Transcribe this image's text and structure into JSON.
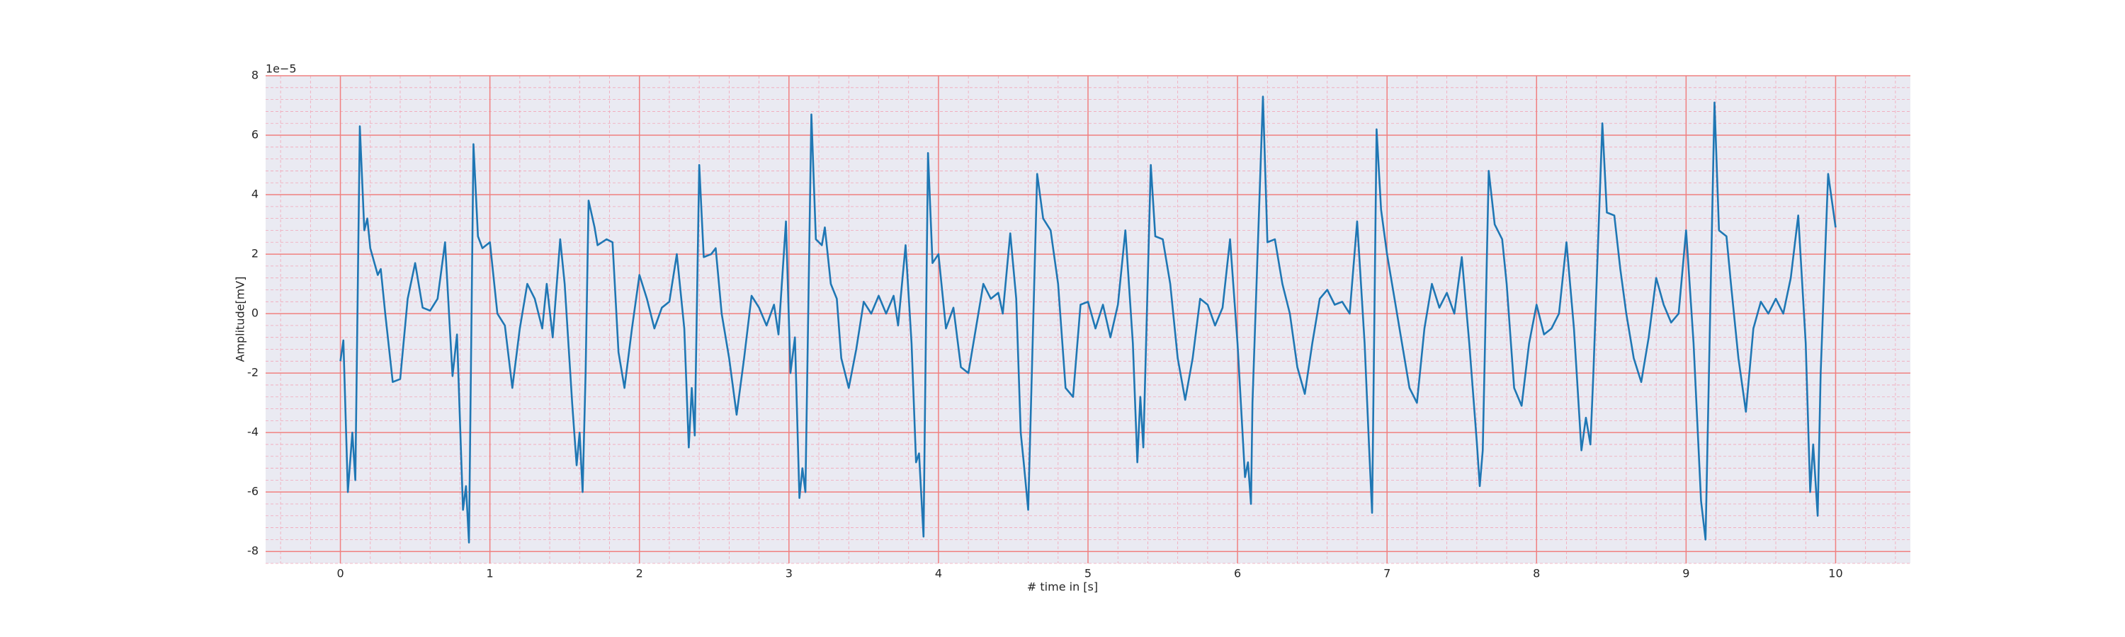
{
  "chart_data": {
    "type": "line",
    "xlabel": "# time in [s]",
    "ylabel": "Amplitude[mV]",
    "offset_text": "1e−5",
    "color": "#1f77b4",
    "grid": true,
    "minor_grid": true,
    "xlim": [
      -0.5,
      10.5
    ],
    "xticks": [
      0,
      1,
      2,
      3,
      4,
      5,
      6,
      7,
      8,
      9,
      10
    ],
    "ylim": [
      -8.4,
      8
    ],
    "yticks": [
      -8,
      -6,
      -4,
      -2,
      0,
      2,
      4,
      6,
      8
    ],
    "x": [
      0,
      0.02,
      0.05,
      0.08,
      0.1,
      0.13,
      0.16,
      0.18,
      0.2,
      0.25,
      0.27,
      0.3,
      0.35,
      0.4,
      0.45,
      0.5,
      0.55,
      0.6,
      0.65,
      0.7,
      0.75,
      0.78,
      0.82,
      0.84,
      0.86,
      0.89,
      0.92,
      0.95,
      1.0,
      1.05,
      1.1,
      1.15,
      1.2,
      1.25,
      1.3,
      1.35,
      1.38,
      1.42,
      1.47,
      1.5,
      1.55,
      1.58,
      1.6,
      1.62,
      1.64,
      1.66,
      1.7,
      1.72,
      1.78,
      1.82,
      1.86,
      1.9,
      1.95,
      2.0,
      2.05,
      2.1,
      2.15,
      2.2,
      2.25,
      2.3,
      2.33,
      2.35,
      2.37,
      2.4,
      2.43,
      2.48,
      2.51,
      2.55,
      2.6,
      2.65,
      2.7,
      2.75,
      2.8,
      2.85,
      2.9,
      2.93,
      2.98,
      3.01,
      3.04,
      3.07,
      3.09,
      3.11,
      3.15,
      3.18,
      3.22,
      3.24,
      3.28,
      3.32,
      3.35,
      3.4,
      3.45,
      3.5,
      3.55,
      3.6,
      3.65,
      3.7,
      3.73,
      3.78,
      3.82,
      3.85,
      3.87,
      3.9,
      3.93,
      3.96,
      4.0,
      4.05,
      4.1,
      4.15,
      4.2,
      4.25,
      4.3,
      4.35,
      4.4,
      4.43,
      4.48,
      4.52,
      4.55,
      4.57,
      4.6,
      4.66,
      4.7,
      4.75,
      4.8,
      4.85,
      4.9,
      4.95,
      5.0,
      5.05,
      5.1,
      5.15,
      5.2,
      5.25,
      5.3,
      5.33,
      5.35,
      5.37,
      5.42,
      5.45,
      5.5,
      5.55,
      5.6,
      5.65,
      5.7,
      5.75,
      5.8,
      5.85,
      5.9,
      5.95,
      6.0,
      6.05,
      6.07,
      6.09,
      6.1,
      6.17,
      6.2,
      6.25,
      6.3,
      6.35,
      6.4,
      6.45,
      6.5,
      6.55,
      6.6,
      6.65,
      6.7,
      6.75,
      6.8,
      6.85,
      6.88,
      6.9,
      6.93,
      6.96,
      7.0,
      7.05,
      7.1,
      7.15,
      7.2,
      7.25,
      7.3,
      7.35,
      7.4,
      7.45,
      7.5,
      7.55,
      7.6,
      7.62,
      7.64,
      7.68,
      7.72,
      7.77,
      7.8,
      7.85,
      7.9,
      7.95,
      8.0,
      8.05,
      8.1,
      8.15,
      8.2,
      8.25,
      8.3,
      8.33,
      8.36,
      8.38,
      8.44,
      8.47,
      8.52,
      8.56,
      8.6,
      8.65,
      8.7,
      8.75,
      8.8,
      8.85,
      8.9,
      8.95,
      9.0,
      9.05,
      9.1,
      9.13,
      9.19,
      9.22,
      9.27,
      9.3,
      9.35,
      9.4,
      9.45,
      9.5,
      9.55,
      9.6,
      9.65,
      9.7,
      9.75,
      9.8,
      9.83,
      9.85,
      9.88,
      9.9,
      9.95,
      10.0
    ],
    "values": [
      -1.6,
      -0.9,
      -6,
      -4,
      -5.6,
      6.3,
      2.8,
      3.2,
      2.2,
      1.3,
      1.5,
      0,
      -2.3,
      -2.2,
      0.5,
      1.7,
      0.2,
      0.1,
      0.5,
      2.4,
      -2.1,
      -0.7,
      -6.6,
      -5.8,
      -7.7,
      5.7,
      2.6,
      2.2,
      2.4,
      0,
      -0.4,
      -2.5,
      -0.5,
      1,
      0.5,
      -0.5,
      1,
      -0.8,
      2.5,
      1,
      -3,
      -5.1,
      -4,
      -6,
      -2,
      3.8,
      2.9,
      2.3,
      2.5,
      2.4,
      -1.3,
      -2.5,
      -0.5,
      1.3,
      0.5,
      -0.5,
      0.2,
      0.4,
      2,
      -0.5,
      -4.5,
      -2.5,
      -4.1,
      5,
      1.9,
      2,
      2.2,
      0,
      -1.5,
      -3.4,
      -1.5,
      0.6,
      0.2,
      -0.4,
      0.3,
      -0.7,
      3.1,
      -2,
      -0.8,
      -6.2,
      -5.2,
      -6,
      6.7,
      2.5,
      2.3,
      2.9,
      1,
      0.5,
      -1.5,
      -2.5,
      -1.2,
      0.4,
      0,
      0.6,
      0,
      0.6,
      -0.4,
      2.3,
      -1,
      -5,
      -4.7,
      -7.5,
      5.4,
      1.7,
      2,
      -0.5,
      0.2,
      -1.8,
      -2,
      -0.5,
      1,
      0.5,
      0.7,
      0,
      2.7,
      0.5,
      -4,
      -5,
      -6.6,
      4.7,
      3.2,
      2.8,
      1,
      -2.5,
      -2.8,
      0.3,
      0.4,
      -0.5,
      0.3,
      -0.8,
      0.3,
      2.8,
      -1,
      -5,
      -2.8,
      -4.5,
      5,
      2.6,
      2.5,
      1,
      -1.5,
      -2.9,
      -1.5,
      0.5,
      0.3,
      -0.4,
      0.2,
      2.5,
      -1,
      -5.5,
      -5,
      -6.4,
      -3,
      7.3,
      2.4,
      2.5,
      1,
      0,
      -1.8,
      -2.7,
      -1,
      0.5,
      0.8,
      0.3,
      0.4,
      0,
      3.1,
      -1,
      -4.5,
      -6.7,
      6.2,
      3.5,
      2,
      0.5,
      -1,
      -2.5,
      -3,
      -0.5,
      1,
      0.2,
      0.7,
      0,
      1.9,
      -1,
      -4.3,
      -5.8,
      -4.6,
      4.8,
      3,
      2.5,
      1,
      -2.5,
      -3.1,
      -1,
      0.3,
      -0.7,
      -0.5,
      0,
      2.4,
      -0.5,
      -4.6,
      -3.5,
      -4.4,
      -2,
      6.4,
      3.4,
      3.3,
      1.5,
      0,
      -1.5,
      -2.3,
      -0.8,
      1.2,
      0.3,
      -0.3,
      0,
      2.8,
      -1,
      -6.3,
      -7.6,
      7.1,
      2.8,
      2.6,
      1,
      -1.5,
      -3.3,
      -0.5,
      0.4,
      0,
      0.5,
      0,
      1.2,
      3.3,
      -1,
      -6,
      -4.4,
      -6.8,
      -2,
      4.7,
      2.9
    ]
  }
}
